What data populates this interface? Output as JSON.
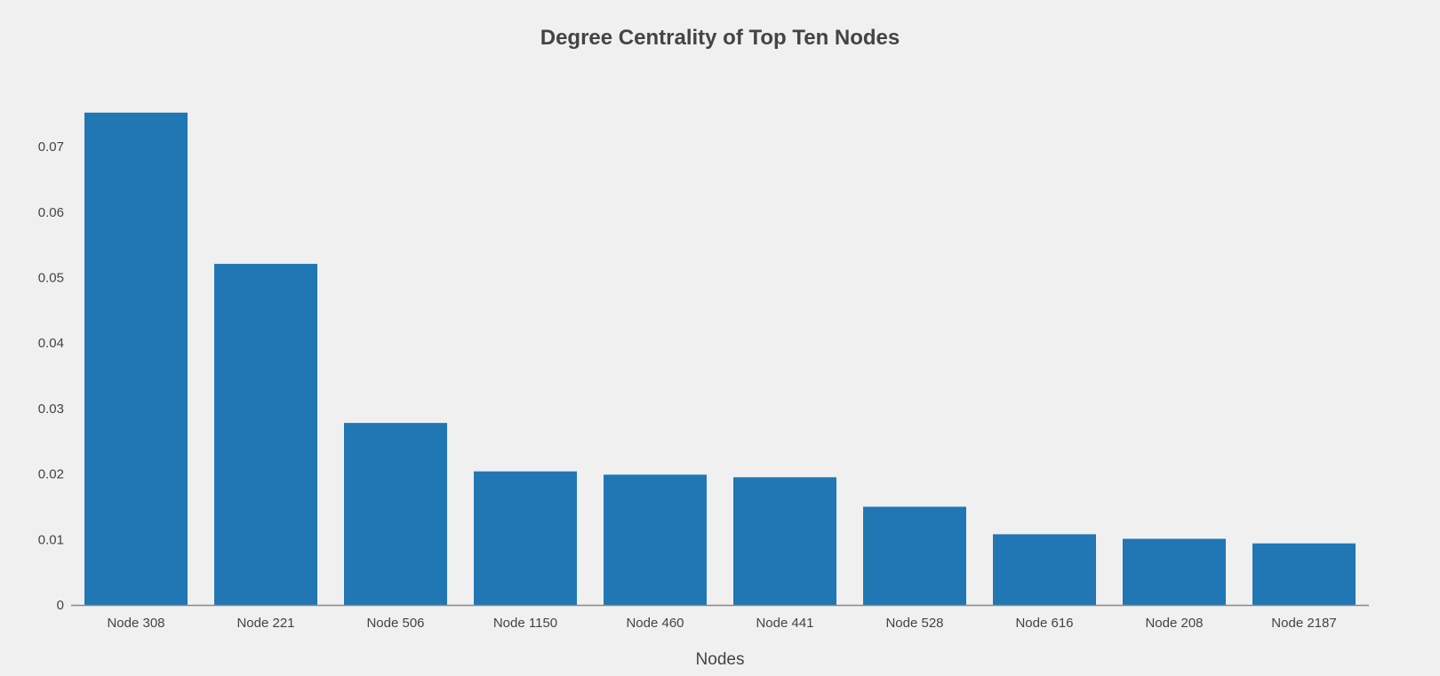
{
  "colors": {
    "background": "#f0f0f0",
    "bar": "#2077b4",
    "axis": "#888888",
    "text": "#444444"
  },
  "chart_data": {
    "type": "bar",
    "title": "Degree Centrality of Top Ten Nodes",
    "xlabel": "Nodes",
    "ylabel": "",
    "categories": [
      "Node 308",
      "Node 221",
      "Node 506",
      "Node 1150",
      "Node 460",
      "Node 441",
      "Node 528",
      "Node 616",
      "Node 208",
      "Node 2187"
    ],
    "values": [
      0.0752,
      0.0521,
      0.0278,
      0.0204,
      0.0199,
      0.0195,
      0.015,
      0.0108,
      0.0101,
      0.0094
    ],
    "yticks": [
      0,
      0.01,
      0.02,
      0.03,
      0.04,
      0.05,
      0.06,
      0.07
    ],
    "ytick_labels": [
      "0",
      "0.01",
      "0.02",
      "0.03",
      "0.04",
      "0.05",
      "0.06",
      "0.07"
    ],
    "ylim": [
      0,
      0.0752
    ],
    "grid": false,
    "legend": "none"
  }
}
